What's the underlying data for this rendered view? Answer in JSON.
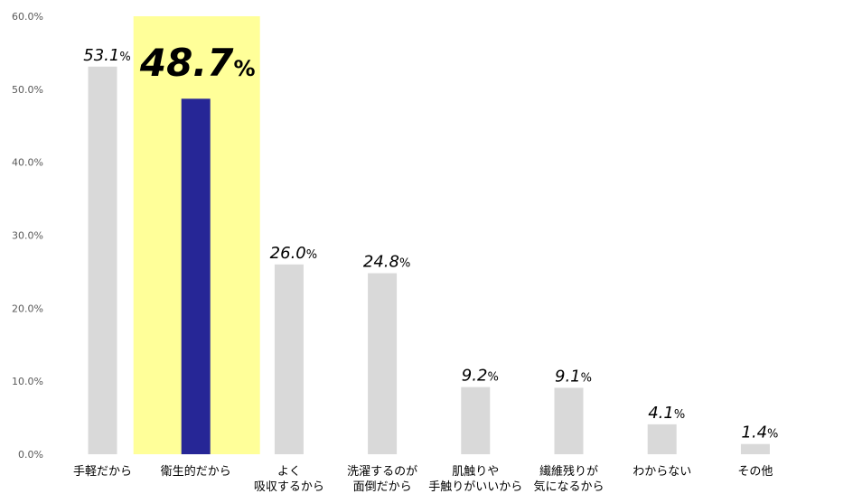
{
  "chart_data": {
    "type": "bar",
    "title": "",
    "xlabel": "",
    "ylabel": "",
    "ylim": [
      0,
      60
    ],
    "y_ticks": [
      "0.0%",
      "10.0%",
      "20.0%",
      "30.0%",
      "40.0%",
      "50.0%",
      "60.0%"
    ],
    "grid": false,
    "categories": [
      [
        "手軽だから"
      ],
      [
        "衛生的だから"
      ],
      [
        "よく",
        "吸収するから"
      ],
      [
        "洗濯するのが",
        "面倒だから"
      ],
      [
        "肌触りや",
        "手触りがいいから"
      ],
      [
        "繊維残りが",
        "気になるから"
      ],
      [
        "わからない"
      ],
      [
        "その他"
      ]
    ],
    "values": [
      53.1,
      48.7,
      26.0,
      24.8,
      9.2,
      9.1,
      4.1,
      1.4
    ],
    "value_labels": [
      "53.1",
      "48.7",
      "26.0",
      "24.8",
      "9.2",
      "9.1",
      "4.1",
      "1.4"
    ],
    "value_suffix": "%",
    "highlight_index": 1,
    "colors": {
      "bar": "#d9d9d9",
      "highlight_bar": "#262696",
      "highlight_bg": "#ffff99",
      "text": "#000000",
      "tick_text": "#595959"
    }
  }
}
